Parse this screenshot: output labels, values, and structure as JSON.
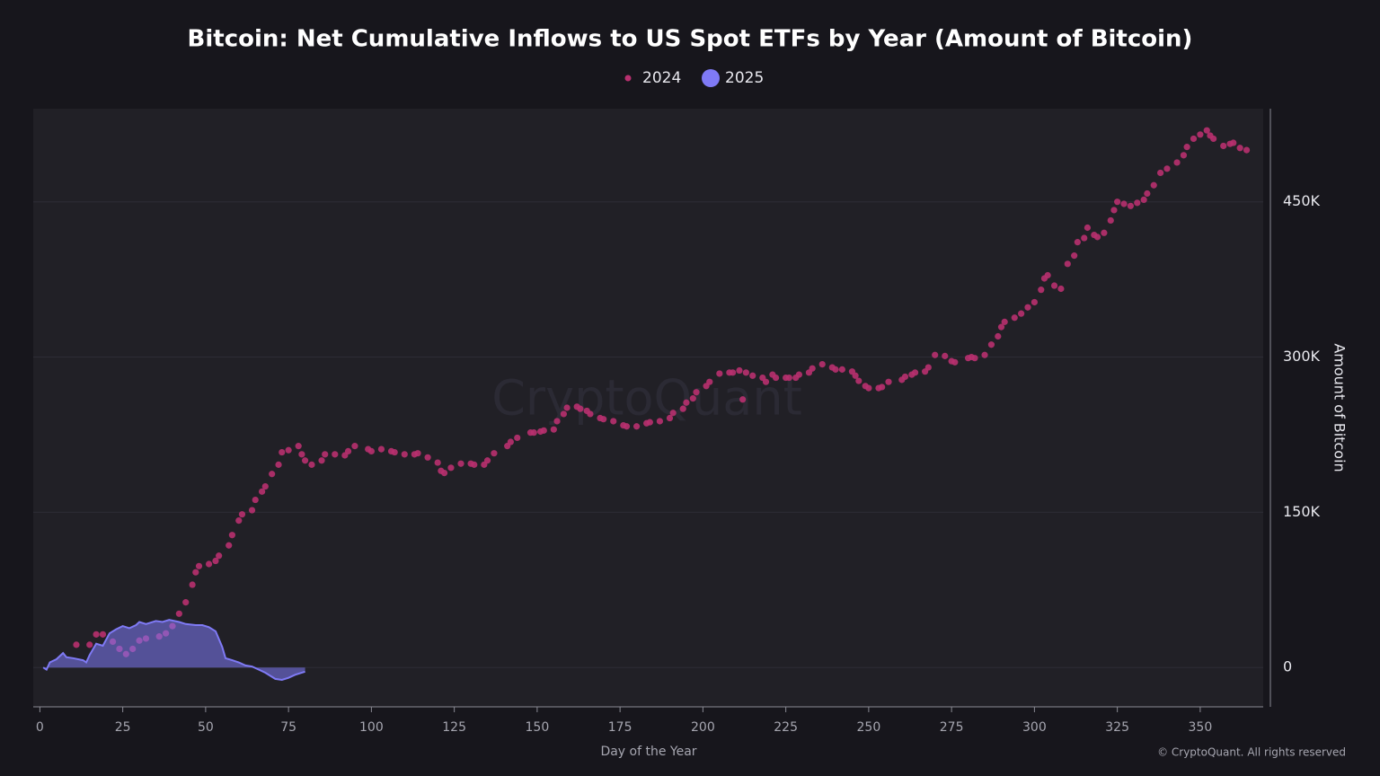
{
  "chart_data": {
    "type": "scatter",
    "title": "Bitcoin: Net Cumulative Inflows to US Spot ETFs by Year (Amount of Bitcoin)",
    "x_label": "Day of the Year",
    "y_label": "Amount of Bitcoin",
    "watermark": "CryptoQuant",
    "copyright": "© CryptoQuant. All rights reserved",
    "xlim": [
      -2,
      369
    ],
    "xticks": [
      0,
      25,
      50,
      75,
      100,
      125,
      150,
      175,
      200,
      225,
      250,
      275,
      300,
      325,
      350
    ],
    "ylim": [
      -38000,
      540000
    ],
    "yticks": [
      0,
      {
        "value": 150000,
        "label": "150K"
      },
      {
        "value": 300000,
        "label": "300K"
      },
      {
        "value": 450000,
        "label": "450K"
      }
    ],
    "grid": true,
    "series": [
      {
        "name": "2024",
        "type": "scatter",
        "color": "#b8306f",
        "x": [
          11,
          15,
          17,
          19,
          22,
          24,
          26,
          28,
          30,
          32,
          36,
          38,
          40,
          42,
          44,
          46,
          47,
          48,
          51,
          53,
          54,
          57,
          58,
          60,
          61,
          64,
          65,
          67,
          68,
          70,
          72,
          73,
          75,
          78,
          79,
          80,
          82,
          85,
          86,
          89,
          92,
          93,
          95,
          99,
          100,
          103,
          106,
          107,
          110,
          113,
          114,
          117,
          120,
          121,
          122,
          124,
          127,
          130,
          131,
          134,
          135,
          137,
          141,
          142,
          144,
          148,
          149,
          151,
          152,
          155,
          156,
          158,
          159,
          162,
          163,
          165,
          166,
          169,
          170,
          173,
          176,
          177,
          180,
          183,
          184,
          187,
          190,
          191,
          194,
          195,
          197,
          198,
          201,
          202,
          205,
          208,
          209,
          211,
          212,
          213,
          215,
          218,
          219,
          221,
          222,
          225,
          226,
          228,
          229,
          232,
          233,
          236,
          239,
          240,
          242,
          245,
          246,
          247,
          249,
          250,
          253,
          254,
          256,
          260,
          261,
          263,
          264,
          267,
          268,
          270,
          273,
          275,
          276,
          280,
          281,
          282,
          285,
          287,
          289,
          290,
          291,
          294,
          296,
          298,
          300,
          302,
          303,
          304,
          306,
          308,
          310,
          312,
          313,
          315,
          316,
          318,
          319,
          321,
          323,
          324,
          325,
          327,
          329,
          331,
          333,
          334,
          336,
          338,
          340,
          343,
          345,
          346,
          348,
          350,
          352,
          353,
          354,
          357,
          359,
          360,
          362,
          364
        ],
        "values": [
          22000,
          22000,
          32000,
          32000,
          25000,
          18000,
          13000,
          18000,
          26000,
          28000,
          30000,
          33000,
          40000,
          52000,
          63000,
          80000,
          92000,
          98000,
          100000,
          103000,
          108000,
          118000,
          128000,
          142000,
          148000,
          152000,
          162000,
          170000,
          175000,
          187000,
          196000,
          208000,
          210000,
          214000,
          206000,
          200000,
          196000,
          200000,
          206000,
          206000,
          205000,
          209000,
          214000,
          211000,
          209000,
          211000,
          209000,
          208000,
          206000,
          206000,
          207000,
          203000,
          198000,
          190000,
          188000,
          193000,
          197000,
          197000,
          196000,
          196000,
          200000,
          207000,
          214000,
          218000,
          222000,
          227000,
          227000,
          228000,
          229000,
          230000,
          238000,
          245000,
          251000,
          252000,
          250000,
          248000,
          245000,
          241000,
          240000,
          238000,
          234000,
          233000,
          233000,
          236000,
          237000,
          238000,
          241000,
          246000,
          250000,
          256000,
          260000,
          266000,
          272000,
          276000,
          284000,
          285000,
          285000,
          287000,
          259000,
          285000,
          282000,
          280000,
          276000,
          283000,
          280000,
          280000,
          280000,
          280000,
          283000,
          285000,
          289000,
          293000,
          290000,
          288000,
          288000,
          286000,
          282000,
          277000,
          272000,
          270000,
          270000,
          271000,
          276000,
          278000,
          281000,
          283000,
          285000,
          286000,
          290000,
          302000,
          301000,
          296000,
          295000,
          299000,
          300000,
          299000,
          302000,
          312000,
          320000,
          329000,
          334000,
          338000,
          342000,
          348000,
          353000,
          365000,
          376000,
          379000,
          369000,
          366000,
          390000,
          398000,
          411000,
          415000,
          425000,
          418000,
          416000,
          420000,
          432000,
          442000,
          450000,
          448000,
          446000,
          449000,
          452000,
          458000,
          466000,
          478000,
          482000,
          488000,
          495000,
          503000,
          511000,
          515000,
          519000,
          514000,
          511000,
          504000,
          506000,
          507000,
          502000,
          500000
        ]
      },
      {
        "name": "2025",
        "type": "area",
        "color": "#7f7af5",
        "x": [
          1,
          2,
          3,
          5,
          7,
          8,
          10,
          13,
          14,
          15,
          17,
          19,
          21,
          23,
          25,
          27,
          29,
          30,
          32,
          35,
          37,
          39,
          42,
          44,
          47,
          49,
          51,
          53,
          55,
          56,
          58,
          60,
          62,
          64,
          66,
          68,
          71,
          73,
          75,
          77,
          80
        ],
        "values": [
          0,
          -2000,
          5000,
          8000,
          14000,
          10000,
          9000,
          7000,
          5000,
          12000,
          23000,
          21000,
          33000,
          37000,
          40000,
          38000,
          41000,
          44000,
          42000,
          45000,
          44000,
          46000,
          44000,
          42000,
          41000,
          41000,
          39000,
          35000,
          20000,
          9000,
          7000,
          5000,
          2000,
          1000,
          -2000,
          -5000,
          -11000,
          -12000,
          -10000,
          -7000,
          -4000
        ]
      }
    ]
  }
}
